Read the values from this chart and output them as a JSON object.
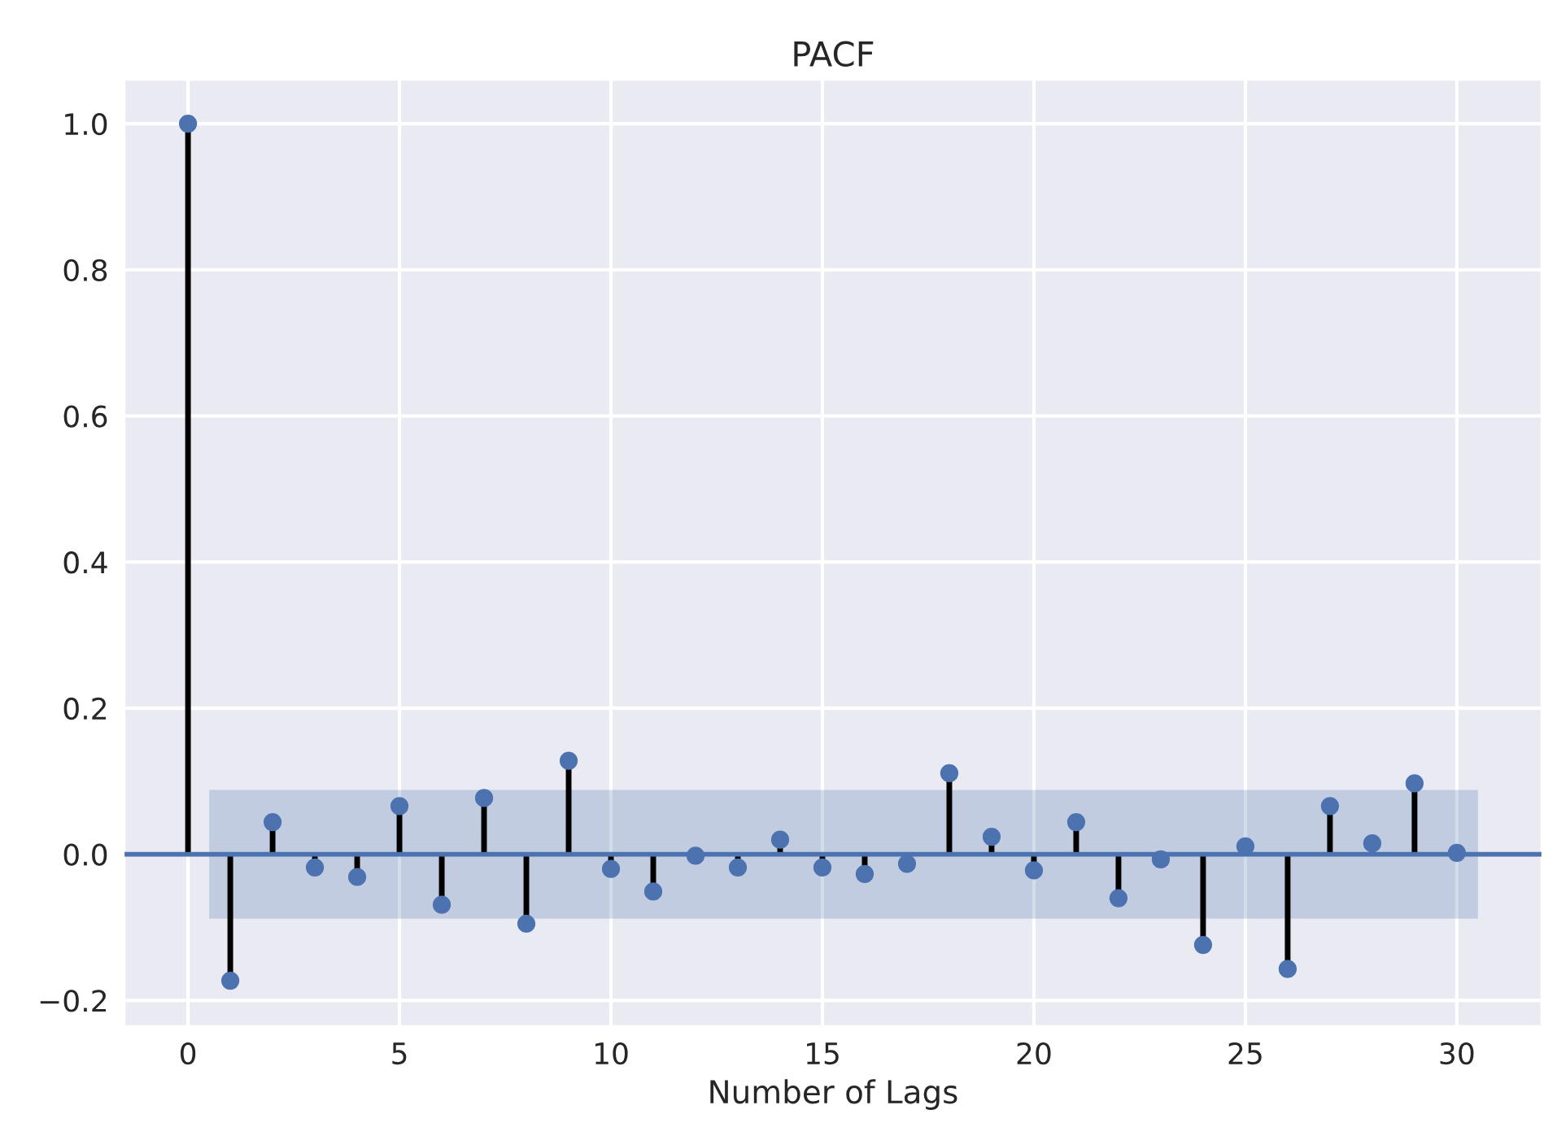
{
  "chart_data": {
    "type": "lollipop",
    "title": "PACF",
    "xlabel": "Number of Lags",
    "x": [
      0,
      1,
      2,
      3,
      4,
      5,
      6,
      7,
      8,
      9,
      10,
      11,
      12,
      13,
      14,
      15,
      16,
      17,
      18,
      19,
      20,
      21,
      22,
      23,
      24,
      25,
      26,
      27,
      28,
      29,
      30
    ],
    "values": [
      1.0,
      -0.173,
      0.044,
      -0.018,
      -0.031,
      0.066,
      -0.069,
      0.077,
      -0.095,
      0.128,
      -0.02,
      -0.051,
      -0.002,
      -0.018,
      0.02,
      -0.018,
      -0.027,
      -0.013,
      0.111,
      0.024,
      -0.022,
      0.044,
      -0.06,
      -0.007,
      -0.124,
      0.011,
      -0.157,
      0.066,
      0.015,
      0.097,
      0.002
    ],
    "color": "#4c72b0",
    "marker": "circle",
    "xlim": [
      -1.5,
      32
    ],
    "ylim": [
      -0.235,
      1.06
    ],
    "xticks": [
      0,
      5,
      10,
      15,
      20,
      25,
      30
    ],
    "yticks": [
      {
        "value": -0.2,
        "label": "−0.2"
      },
      {
        "value": 0,
        "label": "0.0"
      },
      {
        "value": 0.2,
        "label": "0.2"
      },
      {
        "value": 0.4,
        "label": "0.4"
      },
      {
        "value": 0.6,
        "label": "0.6"
      },
      {
        "value": 0.8,
        "label": "0.8"
      },
      {
        "value": 1.0,
        "label": "1.0"
      }
    ],
    "ref_lines": [
      {
        "axis": "y",
        "value": 0,
        "color": "#4c72b0"
      }
    ],
    "bands": [
      {
        "axis": "y",
        "from": -0.088,
        "to": 0.088,
        "color": "#4c72b0"
      }
    ],
    "grid": true
  }
}
